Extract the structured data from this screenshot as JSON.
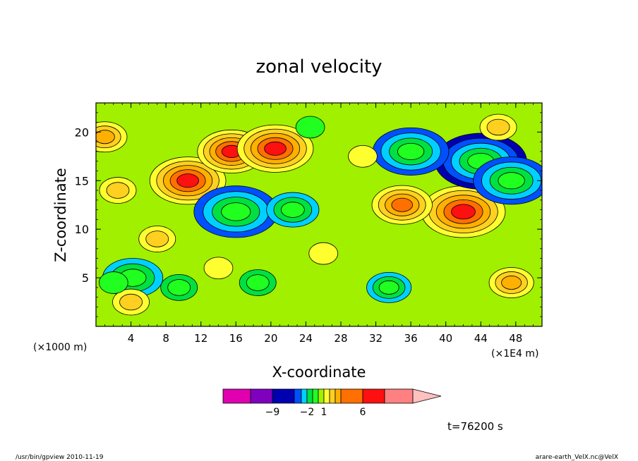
{
  "chart_data": {
    "type": "heatmap",
    "title": "zonal velocity",
    "xlabel": "X-coordinate",
    "ylabel": "Z-coordinate",
    "x_unit_left": "(×1000 m)",
    "x_unit_right": "(×1E4 m)",
    "xlim": [
      0,
      51
    ],
    "ylim": [
      0,
      23
    ],
    "x_ticks": [
      4,
      8,
      12,
      16,
      20,
      24,
      28,
      32,
      36,
      40,
      44,
      48
    ],
    "y_ticks": [
      5,
      10,
      15,
      20
    ],
    "colorbar": {
      "levels": [
        -12,
        -9,
        -6,
        -3,
        -2,
        -1,
        0,
        1,
        2,
        3,
        4,
        6,
        9,
        12
      ],
      "colors": [
        "#e000b0",
        "#8000c0",
        "#0000b0",
        "#0050ff",
        "#00d0ff",
        "#00e040",
        "#20ff20",
        "#a0f000",
        "#ffff30",
        "#ffd020",
        "#ffb000",
        "#ff7000",
        "#ff1010",
        "#ff8080",
        "#ffc0c0"
      ],
      "labels": [
        {
          "value": -9,
          "text": "−9"
        },
        {
          "value": -2,
          "text": "−2"
        },
        {
          "value": 1,
          "text": "1"
        },
        {
          "value": 6,
          "text": "6"
        }
      ]
    },
    "background_value": 0,
    "features": [
      {
        "x": 10.5,
        "z": 15.0,
        "value": 7
      },
      {
        "x": 15.5,
        "z": 18.0,
        "value": 6
      },
      {
        "x": 20.5,
        "z": 18.3,
        "value": 7
      },
      {
        "x": 42.0,
        "z": 11.8,
        "value": 8
      },
      {
        "x": 35.0,
        "z": 12.5,
        "value": 5
      },
      {
        "x": 47.5,
        "z": 4.5,
        "value": 3
      },
      {
        "x": 16.0,
        "z": 11.8,
        "value": -8
      },
      {
        "x": 22.5,
        "z": 12.0,
        "value": -4
      },
      {
        "x": 44.0,
        "z": 17.0,
        "value": -9
      },
      {
        "x": 36.0,
        "z": 18.0,
        "value": -7
      },
      {
        "x": 47.5,
        "z": 15.0,
        "value": -7
      },
      {
        "x": 9.5,
        "z": 4.0,
        "value": -2
      },
      {
        "x": 4.2,
        "z": 5.0,
        "value": -5
      },
      {
        "x": 33.5,
        "z": 4.0,
        "value": -3
      },
      {
        "x": 1.0,
        "z": 19.5,
        "value": 3
      },
      {
        "x": 2.5,
        "z": 14.0,
        "value": 2
      },
      {
        "x": 7.0,
        "z": 9.0,
        "value": 2
      },
      {
        "x": 26.0,
        "z": 7.5,
        "value": 1
      },
      {
        "x": 14.0,
        "z": 6.0,
        "value": 1
      },
      {
        "x": 4.0,
        "z": 2.5,
        "value": 2
      },
      {
        "x": 24.5,
        "z": 20.5,
        "value": -1
      },
      {
        "x": 30.5,
        "z": 17.5,
        "value": 1
      },
      {
        "x": 2.0,
        "z": 4.5,
        "value": -1
      },
      {
        "x": 18.5,
        "z": 4.5,
        "value": -2
      },
      {
        "x": 46.0,
        "z": 20.5,
        "value": 2
      }
    ]
  },
  "time_label": "t=76200 s",
  "footer_left": "/usr/bin/gpview   2010-11-19",
  "footer_right": "arare-earth_VelX.nc@VelX"
}
